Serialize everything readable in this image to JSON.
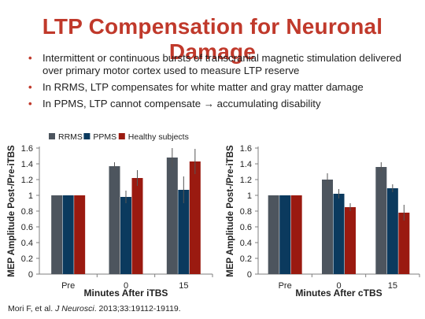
{
  "slide": {
    "title": "LTP Compensation for Neuronal Damage",
    "bullets": [
      "Intermittent or continuous bursts of transcranial magnetic stimulation delivered over primary motor cortex used to measure LTP reserve",
      "In RRMS, LTP compensates for white matter and gray matter damage",
      "In PPMS, LTP cannot compensate → accumulating disability"
    ],
    "citation": {
      "prefix": "Mori F, et al. ",
      "journal": "J Neurosci",
      "suffix": ". 2013;33:19112-19119."
    }
  },
  "colors": {
    "title": "#c0392b",
    "RRMS": "#4d555e",
    "PPMS": "#0b3a5e",
    "Healthy subjects": "#9a1a10"
  },
  "chart_data": [
    {
      "type": "bar",
      "title": "",
      "categories": [
        "Pre",
        "0",
        "15"
      ],
      "xlabel": "Minutes After iTBS",
      "ylabel": "MEP Amplitude Post-/Pre-iTBS",
      "ylim": [
        0,
        1.6
      ],
      "yticks": [
        "0",
        "0.2",
        "0.4",
        "0.6",
        "0.8",
        "1",
        "1.2",
        "1.4",
        "1.6"
      ],
      "grid": false,
      "legend": "top",
      "series": [
        {
          "name": "RRMS",
          "values": [
            1.0,
            1.37,
            1.48
          ],
          "errors": [
            0,
            0.05,
            0.12
          ]
        },
        {
          "name": "PPMS",
          "values": [
            1.0,
            0.98,
            1.07
          ],
          "errors": [
            0,
            0.08,
            0.17
          ]
        },
        {
          "name": "Healthy subjects",
          "values": [
            1.0,
            1.22,
            1.43
          ],
          "errors": [
            0,
            0.1,
            0.16
          ]
        }
      ]
    },
    {
      "type": "bar",
      "title": "",
      "categories": [
        "Pre",
        "0",
        "15"
      ],
      "xlabel": "Minutes After cTBS",
      "ylabel": "MEP Amplitude Post-/Pre-iTBS",
      "ylim": [
        0,
        1.6
      ],
      "yticks": [
        "0",
        "0.2",
        "0.4",
        "0.6",
        "0.8",
        "1",
        "1.2",
        "1.4",
        "1.6"
      ],
      "grid": false,
      "legend": "none",
      "series": [
        {
          "name": "RRMS",
          "values": [
            1.0,
            1.2,
            1.36
          ],
          "errors": [
            0,
            0.08,
            0.06
          ]
        },
        {
          "name": "PPMS",
          "values": [
            1.0,
            1.02,
            1.09
          ],
          "errors": [
            0,
            0.06,
            0.05
          ]
        },
        {
          "name": "Healthy subjects",
          "values": [
            1.0,
            0.85,
            0.78
          ],
          "errors": [
            0,
            0.05,
            0.1
          ]
        }
      ]
    }
  ]
}
